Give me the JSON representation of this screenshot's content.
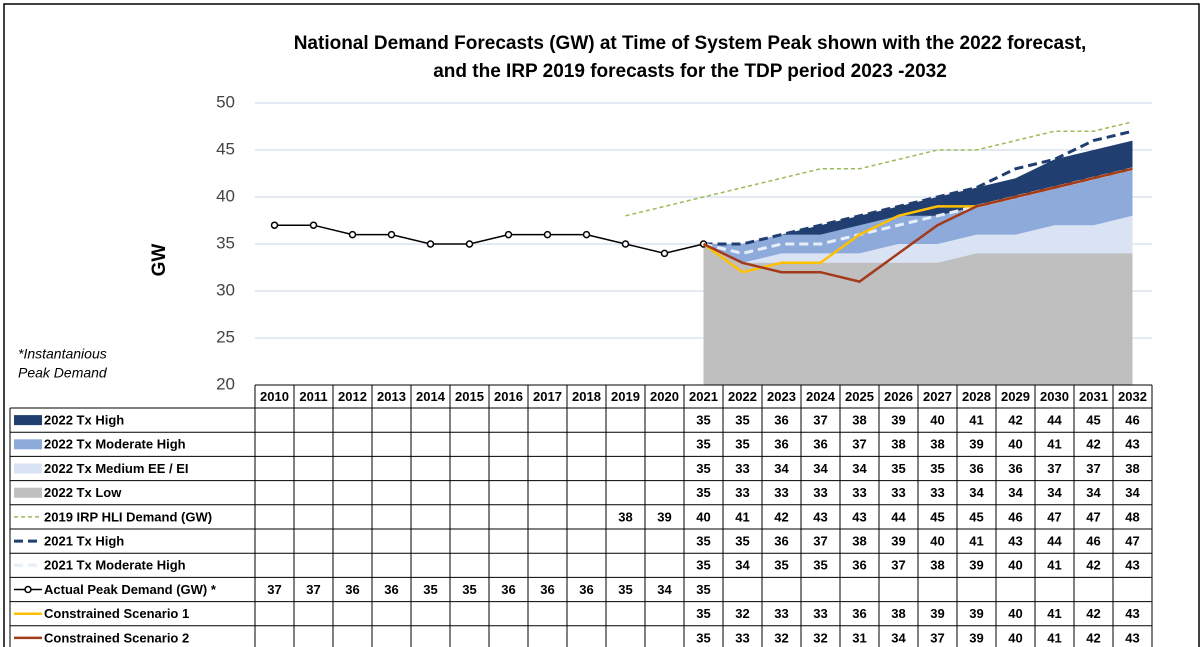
{
  "chart_data": {
    "type": "line",
    "title": [
      "National Demand Forecasts (GW) at Time of System Peak shown with the 2022 forecast,",
      "and the IRP 2019 forecasts  for the TDP period 2023 -2032"
    ],
    "y_label": "GW",
    "note": [
      "*Instantanious",
      "Peak Demand"
    ],
    "categories": [
      "2010",
      "2011",
      "2012",
      "2013",
      "2014",
      "2015",
      "2016",
      "2017",
      "2018",
      "2019",
      "2020",
      "2021",
      "2022",
      "2023",
      "2024",
      "2025",
      "2026",
      "2027",
      "2028",
      "2029",
      "2030",
      "2031",
      "2032"
    ],
    "ylim": [
      20,
      50
    ],
    "yticks": [
      20,
      25,
      30,
      35,
      40,
      45,
      50
    ],
    "grid": true,
    "series": [
      {
        "name": "2022 Tx High",
        "kind": "area",
        "color": "#203f70",
        "values": [
          null,
          null,
          null,
          null,
          null,
          null,
          null,
          null,
          null,
          null,
          null,
          35,
          35,
          36,
          37,
          38,
          39,
          40,
          41,
          42,
          44,
          45,
          46
        ]
      },
      {
        "name": "2022 Tx Moderate High",
        "kind": "area",
        "color": "#8eaadb",
        "values": [
          null,
          null,
          null,
          null,
          null,
          null,
          null,
          null,
          null,
          null,
          null,
          35,
          35,
          36,
          36,
          37,
          38,
          38,
          39,
          40,
          41,
          42,
          43
        ]
      },
      {
        "name": "2022 Tx Medium EE / EI",
        "kind": "area",
        "color": "#dae3f3",
        "values": [
          null,
          null,
          null,
          null,
          null,
          null,
          null,
          null,
          null,
          null,
          null,
          35,
          33,
          34,
          34,
          34,
          35,
          35,
          36,
          36,
          37,
          37,
          38
        ]
      },
      {
        "name": "2022 Tx Low",
        "kind": "area",
        "color": "#bfbfbf",
        "values": [
          null,
          null,
          null,
          null,
          null,
          null,
          null,
          null,
          null,
          null,
          null,
          35,
          33,
          33,
          33,
          33,
          33,
          33,
          34,
          34,
          34,
          34,
          34
        ]
      },
      {
        "name": "2019 IRP HLI Demand (GW)",
        "kind": "line",
        "dash": "4 3",
        "width": 1.5,
        "color": "#9bbb59",
        "values": [
          null,
          null,
          null,
          null,
          null,
          null,
          null,
          null,
          null,
          38,
          39,
          40,
          41,
          42,
          43,
          43,
          44,
          45,
          45,
          46,
          47,
          47,
          48
        ]
      },
      {
        "name": "2021 Tx High",
        "kind": "line",
        "dash": "9 5",
        "width": 3,
        "color": "#203f70",
        "values": [
          null,
          null,
          null,
          null,
          null,
          null,
          null,
          null,
          null,
          null,
          null,
          35,
          35,
          36,
          37,
          38,
          39,
          40,
          41,
          43,
          44,
          46,
          47
        ]
      },
      {
        "name": "2021 Tx Moderate High",
        "kind": "line",
        "dash": "9 5",
        "width": 3,
        "color": "#e6eef8",
        "values": [
          null,
          null,
          null,
          null,
          null,
          null,
          null,
          null,
          null,
          null,
          null,
          35,
          34,
          35,
          35,
          36,
          37,
          38,
          39,
          40,
          41,
          42,
          43
        ]
      },
      {
        "name": "Actual Peak Demand (GW) *",
        "kind": "line",
        "marker": true,
        "width": 1.5,
        "color": "#000000",
        "values": [
          37,
          37,
          36,
          36,
          35,
          35,
          36,
          36,
          36,
          35,
          34,
          35,
          null,
          null,
          null,
          null,
          null,
          null,
          null,
          null,
          null,
          null,
          null
        ]
      },
      {
        "name": "Constrained Scenario 1",
        "kind": "line",
        "width": 2.5,
        "color": "#ffc000",
        "values": [
          null,
          null,
          null,
          null,
          null,
          null,
          null,
          null,
          null,
          null,
          null,
          35,
          32,
          33,
          33,
          36,
          38,
          39,
          39,
          40,
          41,
          42,
          43
        ]
      },
      {
        "name": "Constrained Scenario 2",
        "kind": "line",
        "width": 2.5,
        "color": "#a33a1c",
        "values": [
          null,
          null,
          null,
          null,
          null,
          null,
          null,
          null,
          null,
          null,
          null,
          35,
          33,
          32,
          32,
          31,
          34,
          37,
          39,
          40,
          41,
          42,
          43
        ]
      }
    ]
  }
}
